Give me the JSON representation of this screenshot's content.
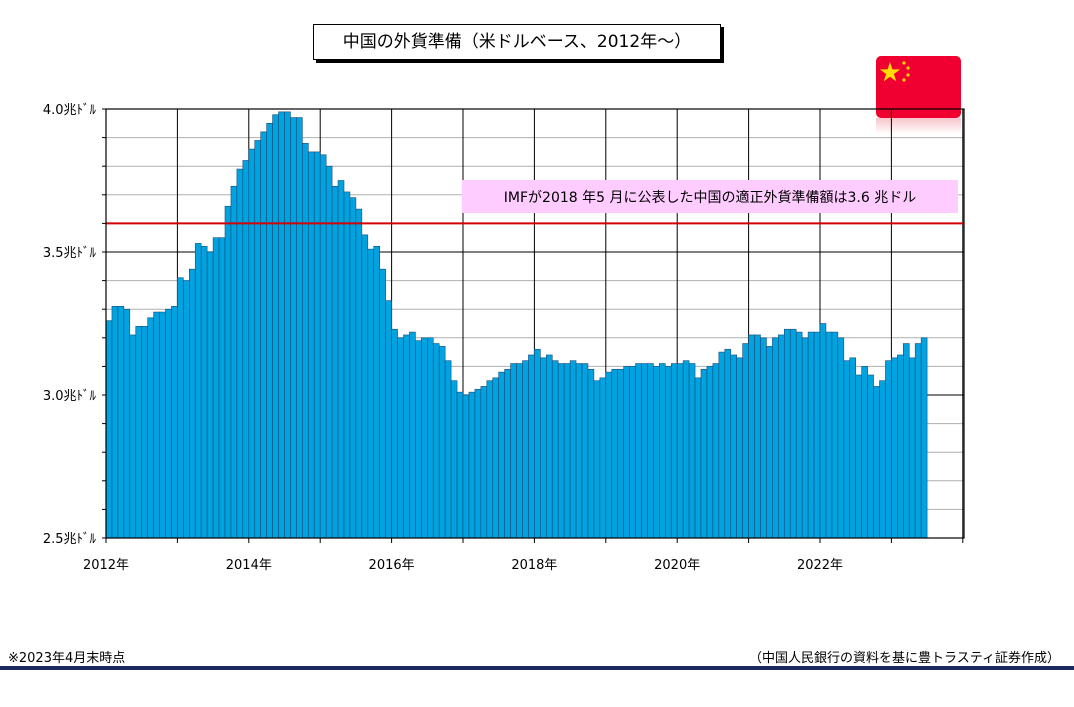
{
  "title": "中国の外貨準備（米ドルベース、2012年～）",
  "note": "※2023年4月末時点",
  "source": "（中国人民銀行の資料を基に豊トラスティ証券作成）",
  "colors": {
    "bar": "#00a3e0",
    "bar_edge": "#1a4d7a",
    "ref_line": "#d40000",
    "annotation_bg": "#ffccff",
    "flag": "#f00030",
    "flag_star": "#ffde00"
  },
  "chart_data": {
    "type": "bar",
    "unit": "兆ドル",
    "ylim": [
      2.5,
      4.0
    ],
    "yticks": [
      {
        "value": 4.0,
        "label": "4.0兆ﾄﾞﾙ"
      },
      {
        "value": 3.5,
        "label": "3.5兆ﾄﾞﾙ"
      },
      {
        "value": 3.0,
        "label": "3.0兆ﾄﾞﾙ"
      },
      {
        "value": 2.5,
        "label": "2.5兆ﾄﾞﾙ"
      }
    ],
    "xlabels": [
      "2012年",
      "2014年",
      "2016年",
      "2018年",
      "2020年",
      "2022年"
    ],
    "grid": true,
    "reference_line": {
      "value": 3.6,
      "label": "IMFが2018 年5 月に公表した中国の適正外貨準備額は3.6 兆ドル"
    },
    "start": "2012-01",
    "values": [
      3.26,
      3.31,
      3.31,
      3.3,
      3.21,
      3.24,
      3.24,
      3.27,
      3.29,
      3.29,
      3.3,
      3.31,
      3.41,
      3.4,
      3.44,
      3.53,
      3.52,
      3.5,
      3.55,
      3.55,
      3.66,
      3.73,
      3.79,
      3.82,
      3.86,
      3.89,
      3.92,
      3.95,
      3.98,
      3.99,
      3.99,
      3.97,
      3.97,
      3.88,
      3.85,
      3.85,
      3.84,
      3.8,
      3.73,
      3.75,
      3.71,
      3.69,
      3.65,
      3.56,
      3.51,
      3.52,
      3.44,
      3.33,
      3.23,
      3.2,
      3.21,
      3.22,
      3.19,
      3.2,
      3.2,
      3.18,
      3.17,
      3.12,
      3.05,
      3.01,
      3.0,
      3.01,
      3.02,
      3.03,
      3.05,
      3.06,
      3.08,
      3.09,
      3.11,
      3.11,
      3.12,
      3.14,
      3.16,
      3.13,
      3.14,
      3.12,
      3.11,
      3.11,
      3.12,
      3.11,
      3.11,
      3.09,
      3.05,
      3.06,
      3.08,
      3.09,
      3.09,
      3.1,
      3.1,
      3.11,
      3.11,
      3.11,
      3.1,
      3.11,
      3.1,
      3.11,
      3.11,
      3.12,
      3.11,
      3.06,
      3.09,
      3.1,
      3.11,
      3.15,
      3.16,
      3.14,
      3.13,
      3.18,
      3.21,
      3.21,
      3.2,
      3.17,
      3.2,
      3.21,
      3.23,
      3.23,
      3.22,
      3.2,
      3.22,
      3.22,
      3.25,
      3.22,
      3.22,
      3.2,
      3.12,
      3.13,
      3.07,
      3.1,
      3.07,
      3.03,
      3.05,
      3.12,
      3.13,
      3.14,
      3.18,
      3.13,
      3.18,
      3.2
    ]
  }
}
